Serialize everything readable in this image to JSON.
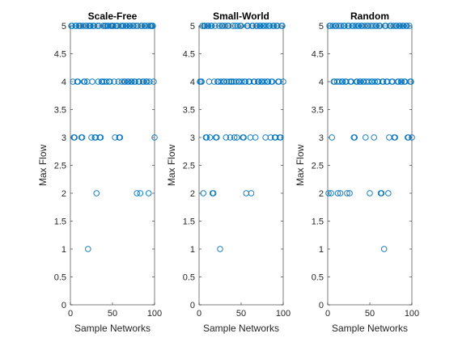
{
  "chart_data": [
    {
      "type": "scatter",
      "title": "Scale-Free",
      "xlabel": "Sample Networks",
      "ylabel": "Max Flow",
      "xlim": [
        0,
        100
      ],
      "ylim": [
        0,
        5
      ],
      "xticks": [
        "0",
        "50",
        "100"
      ],
      "yticks": [
        "0",
        "0.5",
        "1",
        "1.5",
        "2",
        "2.5",
        "3",
        "3.5",
        "4",
        "4.5",
        "5"
      ],
      "marker_color": "#0072BD",
      "x": [
        1,
        3,
        5,
        7,
        9,
        11,
        13,
        15,
        17,
        19,
        21,
        23,
        25,
        27,
        29,
        31,
        33,
        35,
        37,
        39,
        41,
        43,
        45,
        47,
        49,
        51,
        53,
        55,
        57,
        59,
        61,
        63,
        65,
        67,
        69,
        71,
        73,
        75,
        77,
        79,
        81,
        83,
        85,
        87,
        89,
        91,
        93,
        95,
        97,
        99,
        2,
        4,
        6,
        8,
        10,
        12,
        14,
        16,
        18,
        20,
        22,
        24,
        26,
        28,
        30,
        32,
        34,
        36,
        38,
        40,
        42,
        44,
        46,
        48,
        50,
        52,
        54,
        56,
        58,
        60,
        62,
        64,
        66,
        68,
        70,
        72,
        74,
        76,
        78,
        80,
        82,
        84,
        86,
        88,
        90,
        92,
        94,
        96,
        98,
        100
      ],
      "y": [
        5,
        4,
        3,
        5,
        4,
        5,
        3,
        5,
        4,
        5,
        1,
        5,
        3,
        5,
        3,
        2,
        4,
        3,
        4,
        5,
        5,
        4,
        5,
        4,
        5,
        5,
        3,
        5,
        4,
        3,
        4,
        5,
        4,
        5,
        4,
        5,
        4,
        5,
        4,
        2,
        4,
        2,
        5,
        4,
        5,
        4,
        2,
        5,
        5,
        4,
        5,
        3,
        5,
        4,
        5,
        5,
        3,
        4,
        5,
        4,
        5,
        5,
        4,
        5,
        3,
        5,
        5,
        3,
        4,
        4,
        5,
        5,
        4,
        5,
        5,
        4,
        5,
        5,
        3,
        5,
        5,
        4,
        5,
        4,
        5,
        4,
        5,
        4,
        5,
        5,
        4,
        5,
        4,
        5,
        4,
        5,
        4,
        5,
        5,
        3
      ]
    },
    {
      "type": "scatter",
      "title": "Small-World",
      "xlabel": "Sample Networks",
      "ylabel": "Max Flow",
      "xlim": [
        0,
        100
      ],
      "ylim": [
        0,
        5
      ],
      "xticks": [
        "0",
        "50",
        "100"
      ],
      "yticks": [
        "0",
        "0.5",
        "1",
        "1.5",
        "2",
        "2.5",
        "3",
        "3.5",
        "4",
        "4.5",
        "5"
      ],
      "marker_color": "#0072BD",
      "x": [
        1,
        3,
        5,
        7,
        9,
        11,
        13,
        15,
        17,
        19,
        21,
        23,
        25,
        27,
        29,
        31,
        33,
        35,
        37,
        39,
        41,
        43,
        45,
        47,
        49,
        51,
        53,
        55,
        57,
        59,
        61,
        63,
        65,
        67,
        69,
        71,
        73,
        75,
        77,
        79,
        81,
        83,
        85,
        87,
        89,
        91,
        93,
        95,
        97,
        99,
        2,
        4,
        6,
        8,
        10,
        12,
        14,
        16,
        18,
        20,
        22,
        24,
        26,
        28,
        30,
        32,
        34,
        36,
        38,
        40,
        42,
        44,
        46,
        48,
        50,
        52,
        54,
        56,
        58,
        60,
        62,
        64,
        66,
        68,
        70,
        72,
        74,
        76,
        78,
        80,
        82,
        84,
        86,
        88,
        90,
        92,
        94,
        96,
        98,
        100
      ],
      "y": [
        4,
        4,
        2,
        5,
        3,
        5,
        3,
        5,
        2,
        5,
        3,
        4,
        1,
        5,
        4,
        5,
        4,
        5,
        3,
        4,
        4,
        5,
        3,
        4,
        5,
        4,
        3,
        4,
        5,
        4,
        3,
        5,
        4,
        3,
        5,
        4,
        5,
        4,
        5,
        3,
        4,
        5,
        3,
        4,
        5,
        3,
        5,
        4,
        3,
        5,
        4,
        5,
        5,
        3,
        5,
        4,
        5,
        2,
        4,
        3,
        4,
        5,
        4,
        5,
        4,
        3,
        5,
        4,
        4,
        5,
        3,
        4,
        5,
        4,
        5,
        3,
        4,
        2,
        5,
        4,
        2,
        5,
        4,
        5,
        4,
        5,
        4,
        5,
        4,
        5,
        4,
        5,
        4,
        5,
        3,
        5,
        4,
        3,
        5,
        4
      ]
    },
    {
      "type": "scatter",
      "title": "Random",
      "xlabel": "Sample Networks",
      "ylabel": "Max Flow",
      "xlim": [
        0,
        100
      ],
      "ylim": [
        0,
        5
      ],
      "xticks": [
        "0",
        "50",
        "100"
      ],
      "yticks": [
        "0",
        "0.5",
        "1",
        "1.5",
        "2",
        "2.5",
        "3",
        "3.5",
        "4",
        "4.5",
        "5"
      ],
      "marker_color": "#0072BD",
      "x": [
        1,
        3,
        5,
        7,
        9,
        11,
        13,
        15,
        17,
        19,
        21,
        23,
        25,
        27,
        29,
        31,
        33,
        35,
        37,
        39,
        41,
        43,
        45,
        47,
        49,
        51,
        53,
        55,
        57,
        59,
        61,
        63,
        65,
        67,
        69,
        71,
        73,
        75,
        77,
        79,
        81,
        83,
        85,
        87,
        89,
        91,
        93,
        95,
        97,
        99,
        2,
        4,
        6,
        8,
        10,
        12,
        14,
        16,
        18,
        20,
        22,
        24,
        26,
        28,
        30,
        32,
        34,
        36,
        38,
        40,
        42,
        44,
        46,
        48,
        50,
        52,
        54,
        56,
        58,
        60,
        62,
        64,
        66,
        68,
        70,
        72,
        74,
        76,
        78,
        80,
        82,
        84,
        86,
        88,
        90,
        92,
        94,
        96,
        98,
        100
      ],
      "y": [
        2,
        5,
        3,
        4,
        5,
        4,
        5,
        2,
        4,
        5,
        4,
        2,
        5,
        4,
        5,
        3,
        5,
        4,
        5,
        4,
        5,
        4,
        3,
        5,
        4,
        5,
        4,
        3,
        5,
        4,
        5,
        2,
        4,
        1,
        5,
        4,
        3,
        5,
        4,
        3,
        5,
        4,
        5,
        4,
        5,
        4,
        5,
        3,
        5,
        4,
        5,
        2,
        5,
        4,
        5,
        2,
        4,
        5,
        4,
        5,
        4,
        5,
        2,
        4,
        5,
        3,
        4,
        5,
        4,
        5,
        4,
        5,
        4,
        5,
        2,
        4,
        5,
        4,
        5,
        4,
        5,
        2,
        4,
        5,
        4,
        2,
        5,
        4,
        5,
        3,
        5,
        4,
        5,
        4,
        5,
        4,
        5,
        3,
        4,
        3
      ]
    }
  ]
}
